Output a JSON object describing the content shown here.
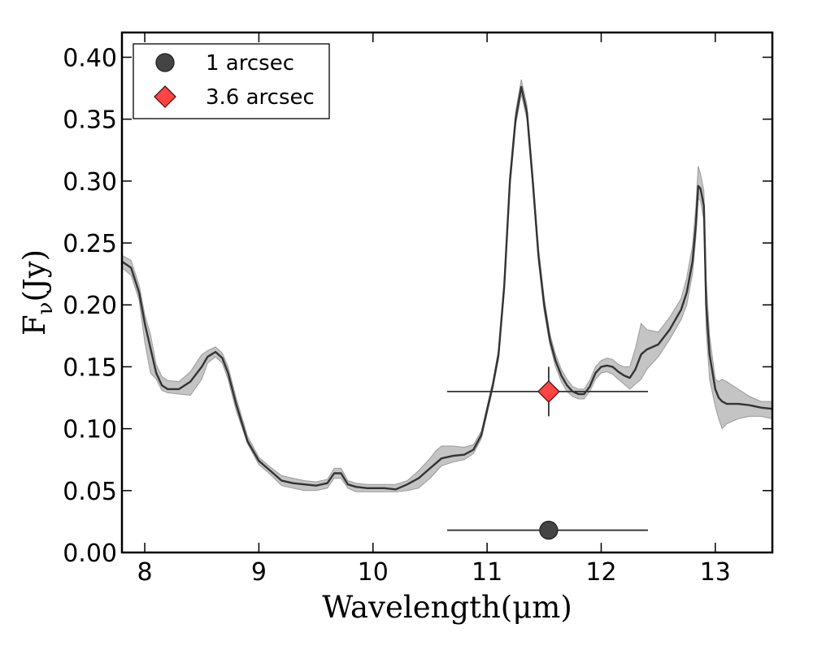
{
  "chart_data": {
    "type": "line",
    "title": "",
    "xlabel": "Wavelength(μm)",
    "ylabel": {
      "main": "F",
      "subscript": "ν",
      "unit": "(Jy)"
    },
    "xlim": [
      7.8,
      13.5
    ],
    "ylim": [
      0.0,
      0.42
    ],
    "xticks": [
      8,
      9,
      10,
      11,
      12,
      13
    ],
    "xtick_labels": [
      "8",
      "9",
      "10",
      "11",
      "12",
      "13"
    ],
    "yticks": [
      0.0,
      0.05,
      0.1,
      0.15,
      0.2,
      0.25,
      0.3,
      0.35,
      0.4
    ],
    "ytick_labels": [
      "0.00",
      "0.05",
      "0.10",
      "0.15",
      "0.20",
      "0.25",
      "0.30",
      "0.35",
      "0.40"
    ],
    "grid": false,
    "legend_position": "top-left",
    "spectrum": {
      "line_color": "#333333",
      "band_color": "#c4c4c4",
      "x": [
        7.8,
        7.88,
        7.95,
        8.0,
        8.05,
        8.1,
        8.15,
        8.2,
        8.3,
        8.4,
        8.5,
        8.55,
        8.62,
        8.68,
        8.73,
        8.8,
        8.9,
        9.0,
        9.1,
        9.2,
        9.3,
        9.4,
        9.5,
        9.6,
        9.66,
        9.72,
        9.78,
        9.85,
        9.95,
        10.1,
        10.2,
        10.3,
        10.4,
        10.5,
        10.55,
        10.6,
        10.7,
        10.8,
        10.88,
        10.95,
        11.0,
        11.05,
        11.1,
        11.15,
        11.2,
        11.25,
        11.3,
        11.35,
        11.4,
        11.45,
        11.5,
        11.55,
        11.6,
        11.65,
        11.7,
        11.75,
        11.8,
        11.85,
        11.9,
        11.95,
        12.0,
        12.05,
        12.1,
        12.15,
        12.2,
        12.25,
        12.3,
        12.35,
        12.4,
        12.5,
        12.6,
        12.7,
        12.75,
        12.8,
        12.83,
        12.85,
        12.87,
        12.9,
        12.92,
        12.95,
        13.0,
        13.03,
        13.06,
        13.1,
        13.2,
        13.3,
        13.4,
        13.5
      ],
      "y": [
        0.235,
        0.23,
        0.21,
        0.185,
        0.165,
        0.145,
        0.135,
        0.132,
        0.132,
        0.138,
        0.15,
        0.158,
        0.162,
        0.157,
        0.145,
        0.12,
        0.09,
        0.074,
        0.066,
        0.058,
        0.056,
        0.055,
        0.054,
        0.056,
        0.064,
        0.064,
        0.055,
        0.053,
        0.052,
        0.052,
        0.051,
        0.055,
        0.06,
        0.068,
        0.072,
        0.076,
        0.078,
        0.079,
        0.083,
        0.095,
        0.115,
        0.135,
        0.16,
        0.215,
        0.3,
        0.35,
        0.376,
        0.355,
        0.3,
        0.24,
        0.2,
        0.172,
        0.155,
        0.143,
        0.135,
        0.13,
        0.128,
        0.128,
        0.134,
        0.145,
        0.15,
        0.151,
        0.15,
        0.146,
        0.143,
        0.141,
        0.148,
        0.16,
        0.164,
        0.168,
        0.18,
        0.196,
        0.21,
        0.235,
        0.265,
        0.296,
        0.294,
        0.28,
        0.2,
        0.16,
        0.132,
        0.125,
        0.122,
        0.12,
        0.12,
        0.119,
        0.117,
        0.116
      ],
      "lower": [
        0.23,
        0.224,
        0.204,
        0.17,
        0.145,
        0.14,
        0.131,
        0.129,
        0.128,
        0.127,
        0.14,
        0.153,
        0.158,
        0.153,
        0.14,
        0.115,
        0.088,
        0.071,
        0.063,
        0.054,
        0.052,
        0.05,
        0.05,
        0.052,
        0.06,
        0.06,
        0.052,
        0.049,
        0.049,
        0.049,
        0.049,
        0.05,
        0.052,
        0.06,
        0.065,
        0.07,
        0.073,
        0.075,
        0.08,
        0.092,
        0.112,
        0.132,
        0.156,
        0.21,
        0.295,
        0.345,
        0.37,
        0.35,
        0.295,
        0.235,
        0.195,
        0.168,
        0.15,
        0.138,
        0.13,
        0.126,
        0.124,
        0.124,
        0.13,
        0.14,
        0.145,
        0.146,
        0.144,
        0.14,
        0.136,
        0.132,
        0.136,
        0.14,
        0.148,
        0.158,
        0.172,
        0.188,
        0.2,
        0.225,
        0.255,
        0.286,
        0.284,
        0.268,
        0.18,
        0.14,
        0.118,
        0.108,
        0.1,
        0.104,
        0.108,
        0.11,
        0.11,
        0.108
      ],
      "upper": [
        0.24,
        0.236,
        0.216,
        0.192,
        0.176,
        0.152,
        0.142,
        0.139,
        0.138,
        0.146,
        0.16,
        0.163,
        0.166,
        0.161,
        0.15,
        0.125,
        0.094,
        0.077,
        0.069,
        0.062,
        0.06,
        0.058,
        0.057,
        0.059,
        0.068,
        0.068,
        0.058,
        0.056,
        0.055,
        0.055,
        0.055,
        0.058,
        0.066,
        0.076,
        0.082,
        0.086,
        0.086,
        0.085,
        0.087,
        0.098,
        0.118,
        0.138,
        0.164,
        0.22,
        0.306,
        0.356,
        0.382,
        0.361,
        0.306,
        0.246,
        0.206,
        0.177,
        0.16,
        0.148,
        0.14,
        0.134,
        0.132,
        0.132,
        0.139,
        0.15,
        0.155,
        0.157,
        0.156,
        0.152,
        0.15,
        0.15,
        0.165,
        0.185,
        0.18,
        0.178,
        0.19,
        0.205,
        0.222,
        0.248,
        0.28,
        0.312,
        0.306,
        0.292,
        0.22,
        0.175,
        0.14,
        0.138,
        0.14,
        0.138,
        0.132,
        0.126,
        0.122,
        0.122
      ]
    },
    "points": [
      {
        "name": "1 arcsec",
        "marker": "circle",
        "color": "#444444",
        "x": 11.54,
        "y": 0.018,
        "xerr": [
          10.65,
          12.41
        ]
      },
      {
        "name": "3.6 arcsec",
        "marker": "diamond",
        "color": "#ff4444",
        "x": 11.54,
        "y": 0.13,
        "xerr": [
          10.65,
          12.41
        ],
        "yerr": [
          0.11,
          0.15
        ]
      }
    ]
  }
}
